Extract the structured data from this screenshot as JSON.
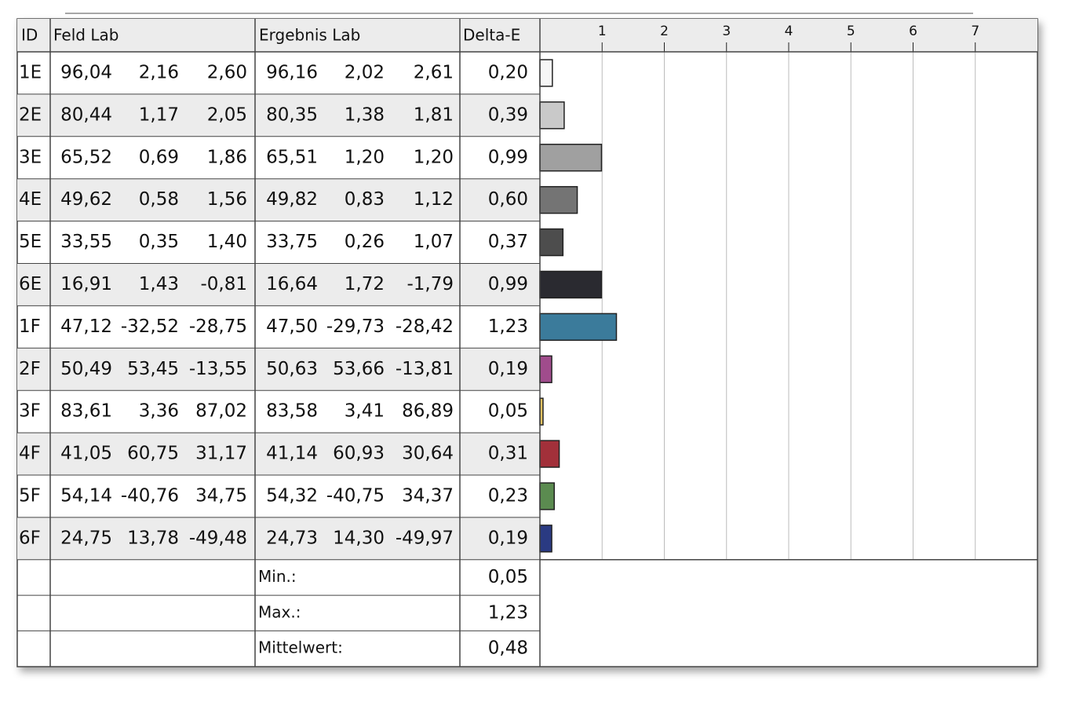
{
  "table": {
    "headers": [
      "ID",
      "Feld Lab",
      "Ergebnis Lab",
      "Delta-E"
    ],
    "rows": [
      {
        "id": "1E",
        "feld": [
          "96,04",
          "2,16",
          "2,60"
        ],
        "ergebnis": [
          "96,16",
          "2,02",
          "2,61"
        ],
        "delta_e": {
          "value": 0.2,
          "label": "0,20"
        },
        "color": "#f6f6f6"
      },
      {
        "id": "2E",
        "feld": [
          "80,44",
          "1,17",
          "2,05"
        ],
        "ergebnis": [
          "80,35",
          "1,38",
          "1,81"
        ],
        "delta_e": {
          "value": 0.39,
          "label": "0,39"
        },
        "color": "#c9c9c9"
      },
      {
        "id": "3E",
        "feld": [
          "65,52",
          "0,69",
          "1,86"
        ],
        "ergebnis": [
          "65,51",
          "1,20",
          "1,20"
        ],
        "delta_e": {
          "value": 0.99,
          "label": "0,99"
        },
        "color": "#a0a0a0"
      },
      {
        "id": "4E",
        "feld": [
          "49,62",
          "0,58",
          "1,56"
        ],
        "ergebnis": [
          "49,82",
          "0,83",
          "1,12"
        ],
        "delta_e": {
          "value": 0.6,
          "label": "0,60"
        },
        "color": "#747474"
      },
      {
        "id": "5E",
        "feld": [
          "33,55",
          "0,35",
          "1,40"
        ],
        "ergebnis": [
          "33,75",
          "0,26",
          "1,07"
        ],
        "delta_e": {
          "value": 0.37,
          "label": "0,37"
        },
        "color": "#4d4d4d"
      },
      {
        "id": "6E",
        "feld": [
          "16,91",
          "1,43",
          "-0,81"
        ],
        "ergebnis": [
          "16,64",
          "1,72",
          "-1,79"
        ],
        "delta_e": {
          "value": 0.99,
          "label": "0,99"
        },
        "color": "#2a2a30"
      },
      {
        "id": "1F",
        "feld": [
          "47,12",
          "-32,52",
          "-28,75"
        ],
        "ergebnis": [
          "47,50",
          "-29,73",
          "-28,42"
        ],
        "delta_e": {
          "value": 1.23,
          "label": "1,23"
        },
        "color": "#3b7b9b"
      },
      {
        "id": "2F",
        "feld": [
          "50,49",
          "53,45",
          "-13,55"
        ],
        "ergebnis": [
          "50,63",
          "53,66",
          "-13,81"
        ],
        "delta_e": {
          "value": 0.19,
          "label": "0,19"
        },
        "color": "#a04c8c"
      },
      {
        "id": "3F",
        "feld": [
          "83,61",
          "3,36",
          "87,02"
        ],
        "ergebnis": [
          "83,58",
          "3,41",
          "86,89"
        ],
        "delta_e": {
          "value": 0.05,
          "label": "0,05"
        },
        "color": "#e2c262"
      },
      {
        "id": "4F",
        "feld": [
          "41,05",
          "60,75",
          "31,17"
        ],
        "ergebnis": [
          "41,14",
          "60,93",
          "30,64"
        ],
        "delta_e": {
          "value": 0.31,
          "label": "0,31"
        },
        "color": "#a2303a"
      },
      {
        "id": "5F",
        "feld": [
          "54,14",
          "-40,76",
          "34,75"
        ],
        "ergebnis": [
          "54,32",
          "-40,75",
          "34,37"
        ],
        "delta_e": {
          "value": 0.23,
          "label": "0,23"
        },
        "color": "#5b8b50"
      },
      {
        "id": "6F",
        "feld": [
          "24,75",
          "13,78",
          "-49,48"
        ],
        "ergebnis": [
          "24,73",
          "14,30",
          "-49,97"
        ],
        "delta_e": {
          "value": 0.19,
          "label": "0,19"
        },
        "color": "#2a3a82"
      }
    ],
    "summary": [
      {
        "label": "Min.:",
        "value": "0,05"
      },
      {
        "label": "Max.:",
        "value": "1,23"
      },
      {
        "label": "Mittelwert:",
        "value": "0,48"
      }
    ]
  },
  "bar_axis": {
    "xlim": [
      0,
      8
    ],
    "xticks": [
      1,
      2,
      3,
      4,
      5,
      6,
      7
    ]
  }
}
